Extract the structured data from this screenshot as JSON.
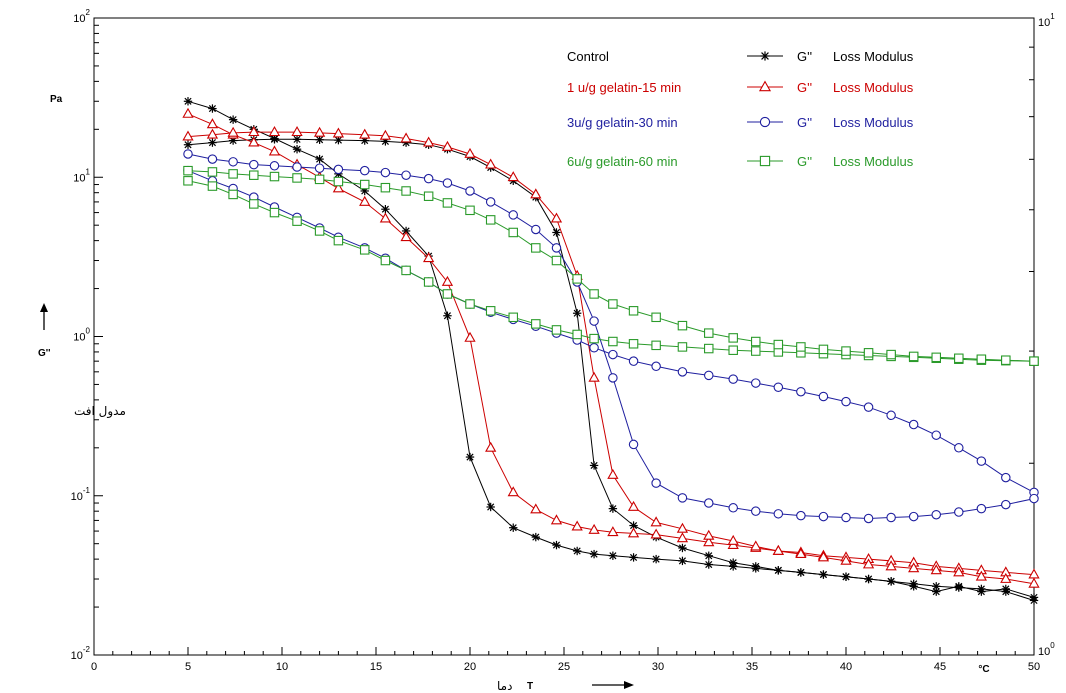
{
  "chart_data": {
    "type": "line",
    "x_axis": {
      "range": [
        0,
        50
      ],
      "ticks": [
        "0",
        "5",
        "10",
        "15",
        "20",
        "25",
        "30",
        "35",
        "40",
        "45",
        "50"
      ],
      "unit": "°C",
      "symbol": "T",
      "label_fa": "دما"
    },
    "y_axis": {
      "scale": "log",
      "range": [
        0.01,
        100
      ],
      "unit": "Pa",
      "symbol": "G''",
      "label_fa": "مدول افت",
      "ticks": [
        {
          "base": "10",
          "exp": "-2",
          "value": 0.01
        },
        {
          "base": "10",
          "exp": "-1",
          "value": 0.1
        },
        {
          "base": "10",
          "exp": "0",
          "value": 1
        },
        {
          "base": "10",
          "exp": "1",
          "value": 10
        },
        {
          "base": "10",
          "exp": "2",
          "value": 100
        }
      ]
    },
    "right_axis": {
      "ticks": [
        {
          "base": "10",
          "exp": "0"
        },
        {
          "base": "10",
          "exp": "1"
        }
      ]
    },
    "grid": false,
    "legend_position": "top-center",
    "series": [
      {
        "name": "Control",
        "symbol": "G''",
        "desc": "Loss Modulus",
        "color": "#000000",
        "marker": "star",
        "branches": [
          {
            "x": [
              5,
              6.3,
              7.4,
              8.5,
              9.6,
              10.8,
              12,
              13,
              14.4,
              15.5,
              16.6,
              17.8,
              18.8,
              20,
              21.1,
              22.3,
              23.5,
              24.6,
              25.7,
              26.6,
              27.6,
              28.7,
              29.9,
              31.3,
              32.7,
              34,
              35.2,
              36.4,
              37.6,
              38.8,
              40,
              41.2,
              42.4,
              43.6,
              44.8,
              46,
              47.2,
              48.5,
              50
            ],
            "y": [
              30,
              27,
              23,
              20,
              17.5,
              15,
              13,
              10.5,
              8.2,
              6.3,
              4.6,
              3.2,
              1.35,
              0.175,
              0.085,
              0.063,
              0.055,
              0.049,
              0.045,
              0.043,
              0.042,
              0.041,
              0.04,
              0.039,
              0.037,
              0.036,
              0.035,
              0.034,
              0.033,
              0.032,
              0.031,
              0.03,
              0.029,
              0.028,
              0.027,
              0.0265,
              0.026,
              0.025,
              0.022
            ]
          },
          {
            "x": [
              5,
              6.3,
              7.4,
              8.5,
              9.6,
              10.8,
              12,
              13,
              14.4,
              15.5,
              16.6,
              17.8,
              18.8,
              20,
              21.1,
              22.3,
              23.5,
              24.6,
              25.7,
              26.6,
              27.6,
              28.7,
              29.9,
              31.3,
              32.7,
              34,
              35.2,
              36.4,
              37.6,
              38.8,
              40,
              41.2,
              42.4,
              43.6,
              44.8,
              46,
              47.2,
              48.5,
              50
            ],
            "y": [
              16,
              16.5,
              17,
              17.2,
              17.3,
              17.3,
              17.2,
              17.1,
              17,
              16.8,
              16.5,
              16,
              15,
              13.5,
              11.5,
              9.5,
              7.5,
              4.5,
              1.4,
              0.155,
              0.083,
              0.065,
              0.055,
              0.047,
              0.042,
              0.038,
              0.036,
              0.034,
              0.033,
              0.032,
              0.031,
              0.03,
              0.029,
              0.027,
              0.025,
              0.027,
              0.025,
              0.026,
              0.023
            ]
          }
        ]
      },
      {
        "name": "1 u/g gelatin-15 min",
        "symbol": "G''",
        "desc": "Loss Modulus",
        "color": "#cc0000",
        "marker": "triangle",
        "branches": [
          {
            "x": [
              5,
              6.3,
              7.4,
              8.5,
              9.6,
              10.8,
              12,
              13,
              14.4,
              15.5,
              16.6,
              17.8,
              18.8,
              20,
              21.1,
              22.3,
              23.5,
              24.6,
              25.7,
              26.6,
              27.6,
              28.7,
              29.9,
              31.3,
              32.7,
              34,
              35.2,
              36.4,
              37.6,
              38.8,
              40,
              41.2,
              42.4,
              43.6,
              44.8,
              46,
              47.2,
              48.5,
              50
            ],
            "y": [
              25,
              21.5,
              18.5,
              16.5,
              14.5,
              12,
              10,
              8.5,
              7,
              5.5,
              4.2,
              3.1,
              2.2,
              0.98,
              0.2,
              0.105,
              0.082,
              0.07,
              0.064,
              0.061,
              0.059,
              0.058,
              0.057,
              0.054,
              0.051,
              0.049,
              0.047,
              0.045,
              0.044,
              0.042,
              0.041,
              0.04,
              0.039,
              0.038,
              0.036,
              0.035,
              0.034,
              0.033,
              0.032
            ]
          },
          {
            "x": [
              5,
              6.3,
              7.4,
              8.5,
              9.6,
              10.8,
              12,
              13,
              14.4,
              15.5,
              16.6,
              17.8,
              18.8,
              20,
              21.1,
              22.3,
              23.5,
              24.6,
              25.7,
              26.6,
              27.6,
              28.7,
              29.9,
              31.3,
              32.7,
              34,
              35.2,
              36.4,
              37.6,
              38.8,
              40,
              41.2,
              42.4,
              43.6,
              44.8,
              46,
              47.2,
              48.5,
              50
            ],
            "y": [
              18,
              18.5,
              19,
              19.2,
              19.2,
              19.2,
              19,
              18.8,
              18.5,
              18.2,
              17.5,
              16.5,
              15.5,
              14,
              12,
              10,
              7.8,
              5.5,
              2.4,
              0.55,
              0.135,
              0.085,
              0.068,
              0.062,
              0.056,
              0.052,
              0.048,
              0.045,
              0.043,
              0.041,
              0.039,
              0.037,
              0.036,
              0.035,
              0.034,
              0.033,
              0.031,
              0.03,
              0.028
            ]
          }
        ]
      },
      {
        "name": "3u/g gelatin-30 min",
        "symbol": "G''",
        "desc": "Loss Modulus",
        "color": "#1f1f9f",
        "marker": "circle",
        "branches": [
          {
            "x": [
              5,
              6.3,
              7.4,
              8.5,
              9.6,
              10.8,
              12,
              13,
              14.4,
              15.5,
              16.6,
              17.8,
              18.8,
              20,
              21.1,
              22.3,
              23.5,
              24.6,
              25.7,
              26.6,
              27.6,
              28.7,
              29.9,
              31.3,
              32.7,
              34,
              35.2,
              36.4,
              37.6,
              38.8,
              40,
              41.2,
              42.4,
              43.6,
              44.8,
              46,
              47.2,
              48.5,
              50
            ],
            "y": [
              11,
              9.5,
              8.5,
              7.5,
              6.5,
              5.6,
              4.8,
              4.2,
              3.6,
              3.1,
              2.6,
              2.2,
              1.85,
              1.6,
              1.42,
              1.28,
              1.16,
              1.05,
              0.95,
              0.85,
              0.77,
              0.7,
              0.65,
              0.6,
              0.57,
              0.54,
              0.51,
              0.48,
              0.45,
              0.42,
              0.39,
              0.36,
              0.32,
              0.28,
              0.24,
              0.2,
              0.165,
              0.13,
              0.105
            ]
          },
          {
            "x": [
              5,
              6.3,
              7.4,
              8.5,
              9.6,
              10.8,
              12,
              13,
              14.4,
              15.5,
              16.6,
              17.8,
              18.8,
              20,
              21.1,
              22.3,
              23.5,
              24.6,
              25.7,
              26.6,
              27.6,
              28.7,
              29.9,
              31.3,
              32.7,
              34,
              35.2,
              36.4,
              37.6,
              38.8,
              40,
              41.2,
              42.4,
              43.6,
              44.8,
              46,
              47.2,
              48.5,
              50
            ],
            "y": [
              14,
              13,
              12.5,
              12,
              11.8,
              11.6,
              11.4,
              11.2,
              11,
              10.7,
              10.3,
              9.8,
              9.2,
              8.2,
              7,
              5.8,
              4.7,
              3.6,
              2.2,
              1.25,
              0.55,
              0.21,
              0.12,
              0.097,
              0.09,
              0.084,
              0.08,
              0.077,
              0.075,
              0.074,
              0.073,
              0.072,
              0.073,
              0.074,
              0.076,
              0.079,
              0.083,
              0.088,
              0.096
            ]
          }
        ]
      },
      {
        "name": "6u/g gelatin-60 min",
        "symbol": "G''",
        "desc": "Loss Modulus",
        "color": "#2a9a2a",
        "marker": "square",
        "branches": [
          {
            "x": [
              5,
              6.3,
              7.4,
              8.5,
              9.6,
              10.8,
              12,
              13,
              14.4,
              15.5,
              16.6,
              17.8,
              18.8,
              20,
              21.1,
              22.3,
              23.5,
              24.6,
              25.7,
              26.6,
              27.6,
              28.7,
              29.9,
              31.3,
              32.7,
              34,
              35.2,
              36.4,
              37.6,
              38.8,
              40,
              41.2,
              42.4,
              43.6,
              44.8,
              46,
              47.2,
              48.5,
              50
            ],
            "y": [
              9.5,
              8.8,
              7.8,
              6.8,
              6,
              5.3,
              4.6,
              4,
              3.5,
              3,
              2.6,
              2.2,
              1.85,
              1.6,
              1.45,
              1.32,
              1.2,
              1.1,
              1.03,
              0.97,
              0.93,
              0.9,
              0.88,
              0.86,
              0.84,
              0.82,
              0.81,
              0.8,
              0.79,
              0.78,
              0.77,
              0.76,
              0.75,
              0.74,
              0.73,
              0.72,
              0.71,
              0.705,
              0.7
            ]
          },
          {
            "x": [
              5,
              6.3,
              7.4,
              8.5,
              9.6,
              10.8,
              12,
              13,
              14.4,
              15.5,
              16.6,
              17.8,
              18.8,
              20,
              21.1,
              22.3,
              23.5,
              24.6,
              25.7,
              26.6,
              27.6,
              28.7,
              29.9,
              31.3,
              32.7,
              34,
              35.2,
              36.4,
              37.6,
              38.8,
              40,
              41.2,
              42.4,
              43.6,
              44.8,
              46,
              47.2,
              48.5,
              50
            ],
            "y": [
              11,
              10.8,
              10.5,
              10.3,
              10.1,
              9.9,
              9.7,
              9.4,
              9,
              8.6,
              8.2,
              7.6,
              6.9,
              6.2,
              5.4,
              4.5,
              3.6,
              3,
              2.3,
              1.85,
              1.6,
              1.45,
              1.32,
              1.17,
              1.05,
              0.98,
              0.93,
              0.89,
              0.86,
              0.83,
              0.81,
              0.79,
              0.77,
              0.75,
              0.74,
              0.73,
              0.72,
              0.71,
              0.7
            ]
          }
        ]
      }
    ]
  }
}
